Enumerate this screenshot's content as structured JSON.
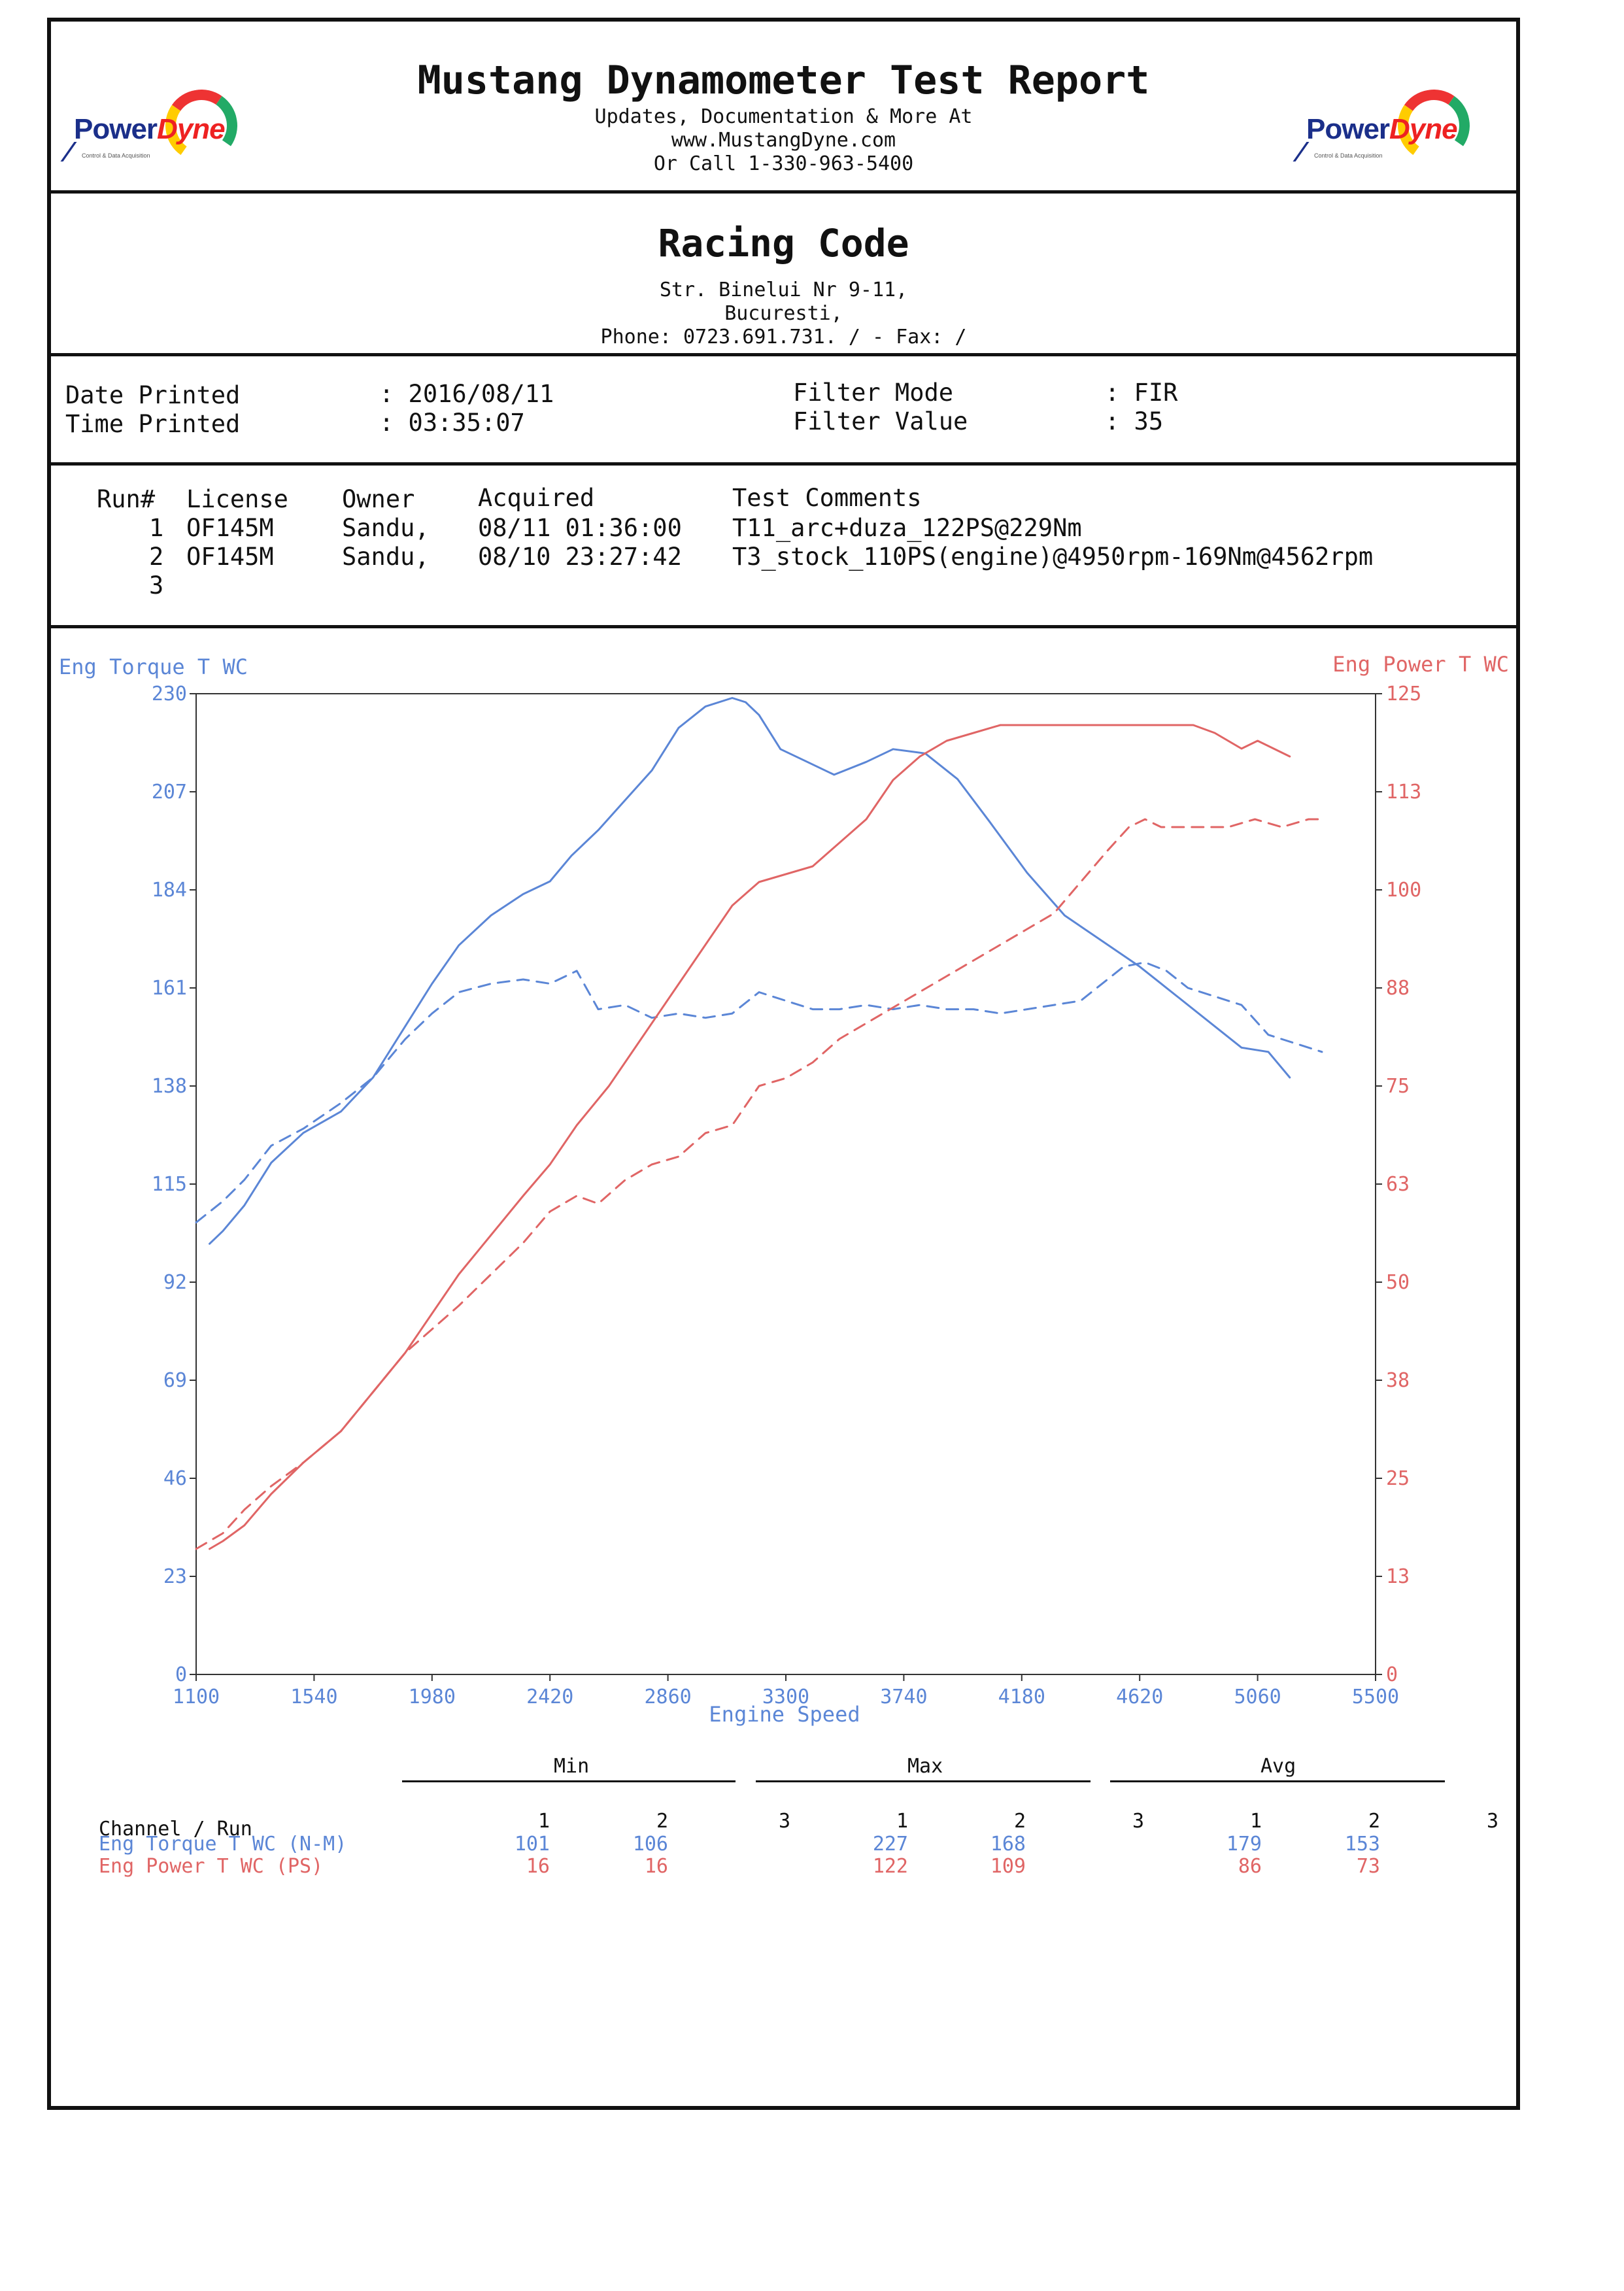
{
  "header": {
    "title": "Mustang Dynamometer Test Report",
    "line1": "Updates, Documentation & More At",
    "line2": "www.MustangDyne.com",
    "line3": "Or Call 1-330-963-5400",
    "logo_power": "Power",
    "logo_dyne": "Dyne",
    "logo_tagline": "Control & Data Acquisition"
  },
  "shop": {
    "name": "Racing Code",
    "address1": "Str. Binelui Nr 9-11,",
    "address2": "Bucuresti,",
    "phone": "Phone: 0723.691.731. /  - Fax:  /"
  },
  "info": {
    "date_label": "Date Printed",
    "date_value": ": 2016/08/11",
    "time_label": "Time Printed",
    "time_value": ": 03:35:07",
    "filter_mode_label": "Filter Mode",
    "filter_mode_value": ": FIR",
    "filter_value_label": "Filter Value",
    "filter_value_value": ": 35"
  },
  "runs": {
    "headers": {
      "run": "Run#",
      "license": "License",
      "owner": "Owner",
      "acquired": "Acquired",
      "comments": "Test Comments"
    },
    "rows": [
      {
        "run": "1",
        "license": "OF145M",
        "owner": "Sandu,",
        "acquired": "08/11 01:36:00",
        "comments": "T11_arc+duza_122PS@229Nm"
      },
      {
        "run": "2",
        "license": "OF145M",
        "owner": "Sandu,",
        "acquired": "08/10 23:27:42",
        "comments": "T3_stock_110PS(engine)@4950rpm-169Nm@4562rpm"
      },
      {
        "run": "3",
        "license": "",
        "owner": "",
        "acquired": "",
        "comments": ""
      }
    ]
  },
  "colors": {
    "torque": "#5b86d6",
    "power": "#e06565",
    "frame": "#111111"
  },
  "chart_data": {
    "type": "line",
    "xlabel": "Engine Speed",
    "ylabel_left": "Eng Torque T WC",
    "ylabel_right": "Eng Power T WC",
    "xlim": [
      1100,
      5500
    ],
    "ylim_left": [
      0,
      230
    ],
    "ylim_right": [
      0,
      125
    ],
    "x_ticks": [
      "1100",
      "1540",
      "1980",
      "2420",
      "2860",
      "3300",
      "3740",
      "4180",
      "4620",
      "5060",
      "5500"
    ],
    "y_ticks_left": [
      "0",
      "23",
      "46",
      "69",
      "92",
      "115",
      "138",
      "161",
      "184",
      "207",
      "230"
    ],
    "y_ticks_right": [
      "0",
      "13",
      "25",
      "38",
      "50",
      "63",
      "75",
      "88",
      "100",
      "113",
      "125"
    ],
    "series": [
      {
        "axis": "left",
        "run": "1",
        "style": "solid",
        "x": [
          1150,
          1200,
          1280,
          1380,
          1500,
          1640,
          1760,
          1880,
          1980,
          2080,
          2200,
          2320,
          2420,
          2500,
          2600,
          2700,
          2800,
          2900,
          3000,
          3100,
          3150,
          3200,
          3280,
          3380,
          3480,
          3600,
          3700,
          3820,
          3940,
          4060,
          4200,
          4340,
          4480,
          4620,
          4760,
          4900,
          5000,
          5100,
          5180
        ],
        "y": [
          101,
          104,
          110,
          120,
          127,
          132,
          140,
          152,
          162,
          171,
          178,
          183,
          186,
          192,
          198,
          205,
          212,
          222,
          227,
          229,
          228,
          225,
          217,
          214,
          211,
          214,
          217,
          216,
          210,
          200,
          188,
          178,
          172,
          166,
          159,
          152,
          147,
          146,
          140
        ]
      },
      {
        "axis": "left",
        "run": "2",
        "style": "dashed",
        "x": [
          1100,
          1200,
          1280,
          1380,
          1500,
          1640,
          1760,
          1880,
          1980,
          2080,
          2200,
          2320,
          2420,
          2520,
          2600,
          2700,
          2800,
          2900,
          3000,
          3100,
          3200,
          3300,
          3400,
          3500,
          3600,
          3700,
          3800,
          3900,
          4000,
          4100,
          4200,
          4300,
          4400,
          4500,
          4560,
          4640,
          4720,
          4800,
          4900,
          5000,
          5100,
          5200,
          5300
        ],
        "y": [
          106,
          111,
          116,
          124,
          128,
          134,
          140,
          149,
          155,
          160,
          162,
          163,
          162,
          165,
          156,
          157,
          154,
          155,
          154,
          155,
          160,
          158,
          156,
          156,
          157,
          156,
          157,
          156,
          156,
          155,
          156,
          157,
          158,
          163,
          166,
          167,
          165,
          161,
          159,
          157,
          150,
          148,
          146
        ]
      },
      {
        "axis": "right",
        "run": "1",
        "style": "solid",
        "x": [
          1150,
          1200,
          1280,
          1380,
          1500,
          1640,
          1760,
          1880,
          1980,
          2080,
          2200,
          2320,
          2420,
          2520,
          2640,
          2760,
          2880,
          3000,
          3100,
          3200,
          3300,
          3400,
          3500,
          3600,
          3700,
          3800,
          3900,
          4000,
          4100,
          4200,
          4340,
          4480,
          4560,
          4680,
          4820,
          4900,
          5000,
          5060,
          5120,
          5180
        ],
        "y": [
          16,
          17,
          19,
          23,
          27,
          31,
          36,
          41,
          46,
          51,
          56,
          61,
          65,
          70,
          75,
          81,
          87,
          93,
          98,
          101,
          102,
          103,
          106,
          109,
          114,
          117,
          119,
          120,
          121,
          121,
          121,
          121,
          121,
          121,
          121,
          120,
          118,
          119,
          118,
          117
        ]
      },
      {
        "axis": "right",
        "run": "2",
        "style": "dashed",
        "x": [
          1100,
          1200,
          1280,
          1380,
          1500,
          1640,
          1760,
          1880,
          1980,
          2080,
          2200,
          2320,
          2420,
          2520,
          2600,
          2700,
          2800,
          2900,
          3000,
          3100,
          3200,
          3300,
          3400,
          3500,
          3600,
          3700,
          3800,
          3900,
          4000,
          4100,
          4200,
          4300,
          4400,
          4500,
          4580,
          4640,
          4700,
          4760,
          4850,
          4950,
          5050,
          5150,
          5250,
          5300
        ],
        "y": [
          16,
          18,
          21,
          24,
          27,
          31,
          36,
          41,
          44,
          47,
          51,
          55,
          59,
          61,
          60,
          63,
          65,
          66,
          69,
          70,
          75,
          76,
          78,
          81,
          83,
          85,
          87,
          89,
          91,
          93,
          95,
          97,
          101,
          105,
          108,
          109,
          108,
          108,
          108,
          108,
          109,
          108,
          109,
          109
        ]
      }
    ]
  },
  "stats": {
    "group_min": "Min",
    "group_max": "Max",
    "group_avg": "Avg",
    "channel_label": "Channel / Run",
    "run_labels": [
      "1",
      "2",
      "3"
    ],
    "rows": [
      {
        "name": "Eng Torque T WC (N-M)",
        "min": [
          "101",
          "106",
          ""
        ],
        "max": [
          "227",
          "168",
          ""
        ],
        "avg": [
          "179",
          "153",
          ""
        ]
      },
      {
        "name": "Eng Power T WC (PS)",
        "min": [
          "16",
          "16",
          ""
        ],
        "max": [
          "122",
          "109",
          ""
        ],
        "avg": [
          "86",
          "73",
          ""
        ]
      }
    ]
  }
}
